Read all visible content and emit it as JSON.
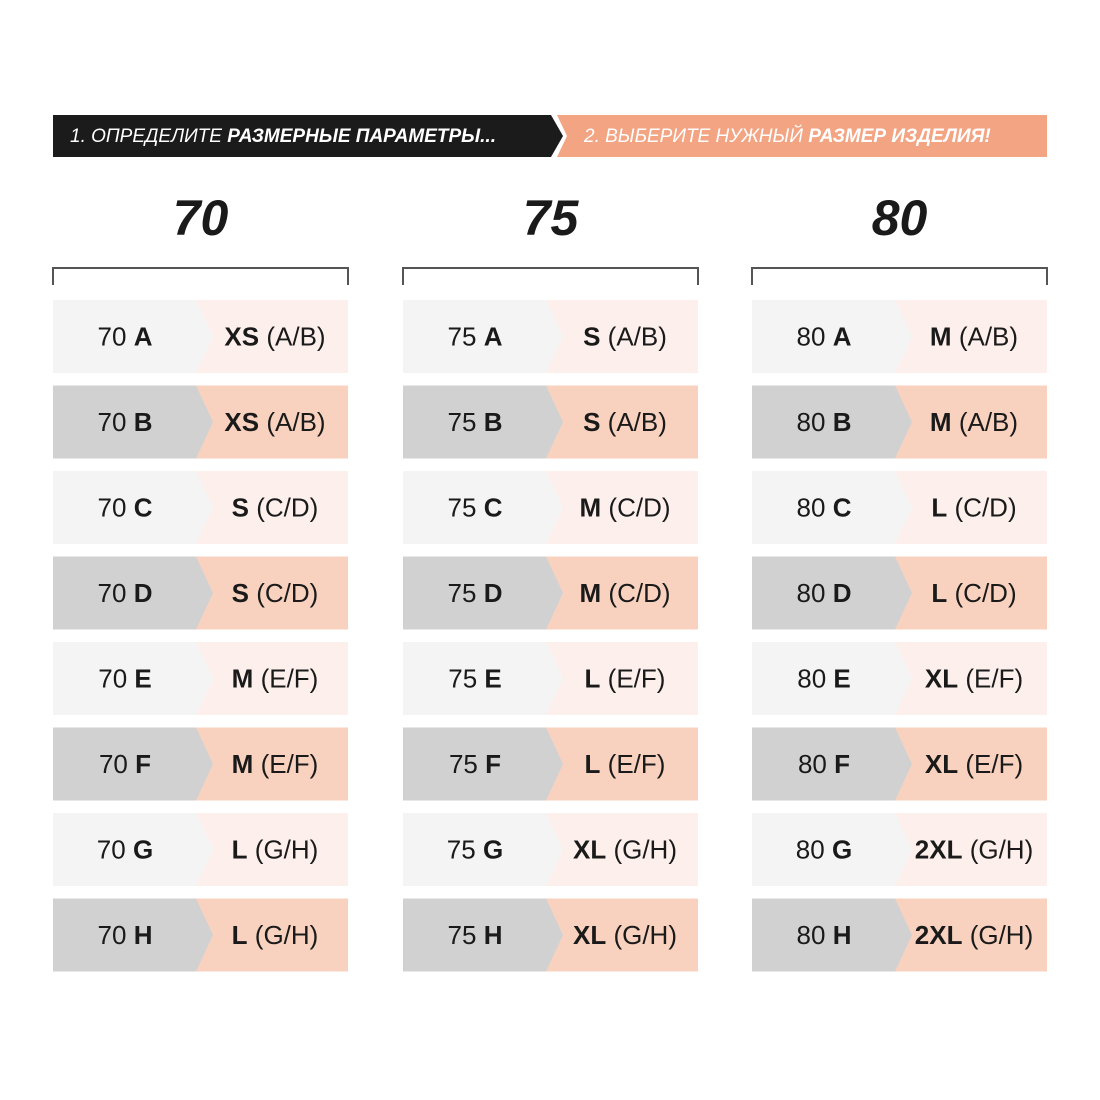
{
  "header": {
    "step1": {
      "text": "1. ОПРЕДЕЛИТЕ",
      "bold": "РАЗМЕРНЫЕ ПАРАМЕТРЫ..."
    },
    "step2": {
      "text": "2. ВЫБЕРИТЕ НУЖНЫЙ",
      "bold": "РАЗМЕР ИЗДЕЛИЯ!"
    }
  },
  "columns": [
    {
      "title": "70",
      "rows": [
        {
          "band": "70",
          "cup": "A",
          "size": "XS",
          "range": "(A/B)"
        },
        {
          "band": "70",
          "cup": "B",
          "size": "XS",
          "range": "(A/B)"
        },
        {
          "band": "70",
          "cup": "C",
          "size": "S",
          "range": "(C/D)"
        },
        {
          "band": "70",
          "cup": "D",
          "size": "S",
          "range": "(C/D)"
        },
        {
          "band": "70",
          "cup": "E",
          "size": "M",
          "range": "(E/F)"
        },
        {
          "band": "70",
          "cup": "F",
          "size": "M",
          "range": "(E/F)"
        },
        {
          "band": "70",
          "cup": "G",
          "size": "L",
          "range": "(G/H)"
        },
        {
          "band": "70",
          "cup": "H",
          "size": "L",
          "range": "(G/H)"
        }
      ]
    },
    {
      "title": "75",
      "rows": [
        {
          "band": "75",
          "cup": "A",
          "size": "S",
          "range": "(A/B)"
        },
        {
          "band": "75",
          "cup": "B",
          "size": "S",
          "range": "(A/B)"
        },
        {
          "band": "75",
          "cup": "C",
          "size": "M",
          "range": "(C/D)"
        },
        {
          "band": "75",
          "cup": "D",
          "size": "M",
          "range": "(C/D)"
        },
        {
          "band": "75",
          "cup": "E",
          "size": "L",
          "range": "(E/F)"
        },
        {
          "band": "75",
          "cup": "F",
          "size": "L",
          "range": "(E/F)"
        },
        {
          "band": "75",
          "cup": "G",
          "size": "XL",
          "range": "(G/H)"
        },
        {
          "band": "75",
          "cup": "H",
          "size": "XL",
          "range": "(G/H)"
        }
      ]
    },
    {
      "title": "80",
      "rows": [
        {
          "band": "80",
          "cup": "A",
          "size": "M",
          "range": "(A/B)"
        },
        {
          "band": "80",
          "cup": "B",
          "size": "M",
          "range": "(A/B)"
        },
        {
          "band": "80",
          "cup": "C",
          "size": "L",
          "range": "(C/D)"
        },
        {
          "band": "80",
          "cup": "D",
          "size": "L",
          "range": "(C/D)"
        },
        {
          "band": "80",
          "cup": "E",
          "size": "XL",
          "range": "(E/F)"
        },
        {
          "band": "80",
          "cup": "F",
          "size": "XL",
          "range": "(E/F)"
        },
        {
          "band": "80",
          "cup": "G",
          "size": "2XL",
          "range": "(G/H)"
        },
        {
          "band": "80",
          "cup": "H",
          "size": "2XL",
          "range": "(G/H)"
        }
      ]
    }
  ]
}
